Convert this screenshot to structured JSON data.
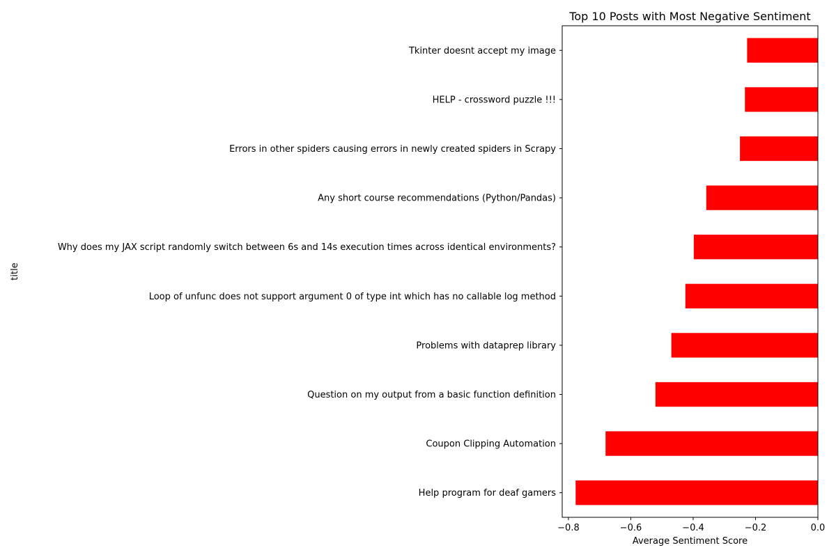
{
  "chart_data": {
    "type": "bar",
    "orientation": "horizontal",
    "title": "Top 10 Posts with Most Negative Sentiment",
    "xlabel": "Average Sentiment Score",
    "ylabel": "title",
    "xlim": [
      -0.82,
      0.0
    ],
    "xticks": [
      -0.8,
      -0.6,
      -0.4,
      -0.2,
      0.0
    ],
    "xtick_labels": [
      "−0.8",
      "−0.6",
      "−0.4",
      "−0.2",
      "0.0"
    ],
    "grid": false,
    "bar_color": "#ff0000",
    "categories": [
      "Tkinter doesnt accept my image",
      "HELP - crossword puzzle !!!",
      "Errors in other spiders causing errors in newly created spiders in Scrapy",
      "Any short course recommendations (Python/Pandas)",
      "Why does my JAX script randomly switch between 6s and 14s execution times across identical environments?",
      "Loop of unfunc does not support argument 0 of type int which has no callable log method",
      "Problems with dataprep library",
      "Question on my output from a basic function definition",
      "Coupon Clipping Automation",
      "Help program for deaf gamers"
    ],
    "values": [
      -0.227,
      -0.234,
      -0.25,
      -0.358,
      -0.398,
      -0.425,
      -0.47,
      -0.521,
      -0.681,
      -0.777
    ]
  }
}
